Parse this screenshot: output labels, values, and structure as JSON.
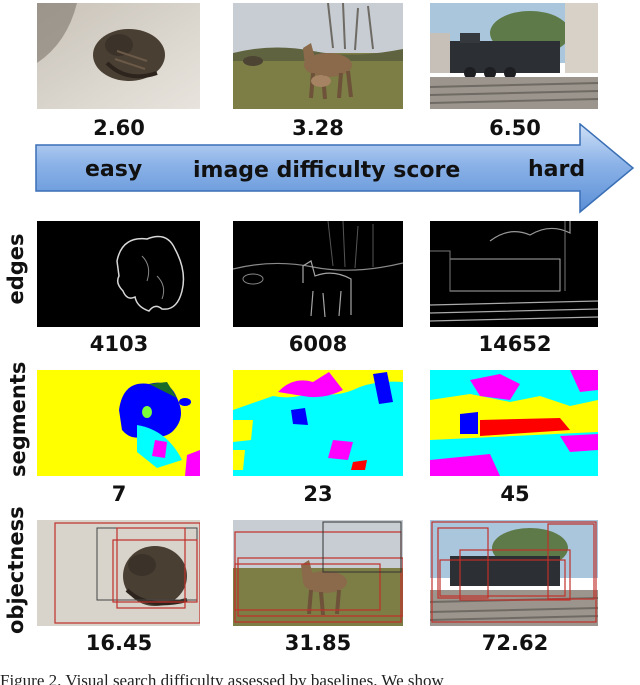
{
  "difficulty_scores": [
    "2.60",
    "3.28",
    "6.50"
  ],
  "arrow": {
    "left_label": "easy",
    "center_label": "image difficulty score",
    "right_label": "hard"
  },
  "rows": [
    {
      "label": "edges",
      "values": [
        "4103",
        "6008",
        "14652"
      ]
    },
    {
      "label": "segments",
      "values": [
        "7",
        "23",
        "45"
      ]
    },
    {
      "label": "objectness",
      "values": [
        "16.45",
        "31.85",
        "72.62"
      ]
    }
  ],
  "caption": "Figure 2. Visual search difficulty assessed by baselines. We show",
  "colors": {
    "arrow_fill": "#5b8fd6",
    "arrow_stroke": "#3a6fb5",
    "box_red": "#c0302a"
  }
}
